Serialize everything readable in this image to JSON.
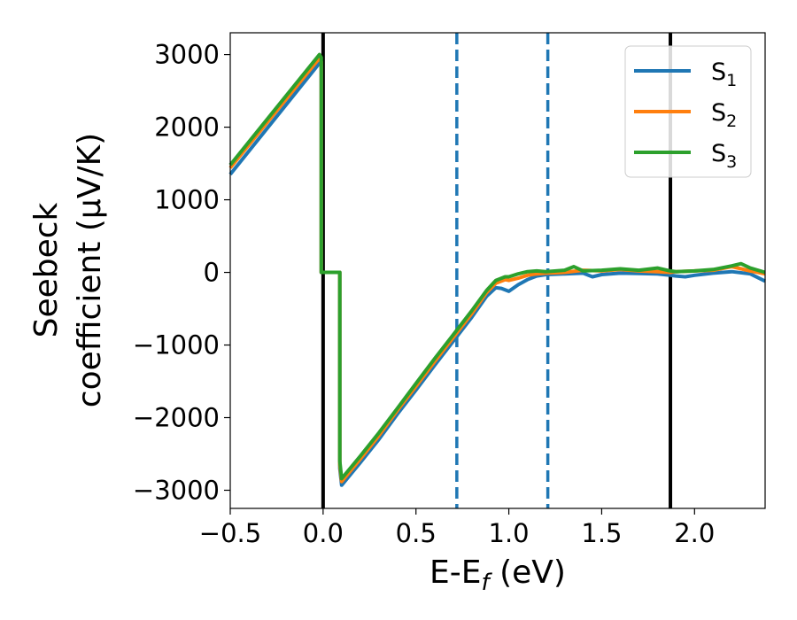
{
  "chart_data": {
    "type": "line",
    "xlabel": "E-E",
    "xlabel_sub": "f",
    "xlabel_unit": " (eV)",
    "ylabel_line1": "Seebeck",
    "ylabel_line2": "coefficient  (μV/K)",
    "xlim": [
      -0.5,
      2.38
    ],
    "ylim": [
      -3250,
      3300
    ],
    "xticks": [
      -0.5,
      0.0,
      0.5,
      1.0,
      1.5,
      2.0
    ],
    "xtick_labels": [
      "−0.5",
      "0.0",
      "0.5",
      "1.0",
      "1.5",
      "2.0"
    ],
    "yticks": [
      -3000,
      -2000,
      -1000,
      0,
      1000,
      2000,
      3000
    ],
    "ytick_labels": [
      "−3000",
      "−2000",
      "−1000",
      "0",
      "1000",
      "2000",
      "3000"
    ],
    "grid": false,
    "legend_position": "top-right",
    "vlines": [
      {
        "x": 0.0,
        "style": "solid",
        "color": "#000000"
      },
      {
        "x": 1.87,
        "style": "solid",
        "color": "#000000"
      },
      {
        "x": 0.72,
        "style": "dashed",
        "color": "#1f77b4"
      },
      {
        "x": 1.21,
        "style": "dashed",
        "color": "#1f77b4"
      }
    ],
    "series": [
      {
        "name": "S",
        "sub": "1",
        "color": "#1f77b4",
        "x": [
          -0.5,
          -0.02,
          -0.01,
          -0.01,
          0.09,
          0.09,
          0.1,
          0.2,
          0.3,
          0.4,
          0.5,
          0.6,
          0.7,
          0.8,
          0.88,
          0.93,
          0.96,
          1.0,
          1.05,
          1.1,
          1.15,
          1.2,
          1.3,
          1.4,
          1.45,
          1.5,
          1.6,
          1.7,
          1.8,
          1.87,
          1.9,
          1.95,
          2.0,
          2.1,
          2.2,
          2.3,
          2.38
        ],
        "y": [
          1350,
          2880,
          2850,
          0,
          0,
          -2700,
          -2930,
          -2620,
          -2300,
          -1950,
          -1620,
          -1280,
          -950,
          -620,
          -330,
          -210,
          -220,
          -260,
          -170,
          -100,
          -50,
          -30,
          -20,
          -10,
          -60,
          -30,
          -10,
          -15,
          -20,
          -40,
          -50,
          -60,
          -40,
          -10,
          10,
          -20,
          -120
        ]
      },
      {
        "name": "S",
        "sub": "2",
        "color": "#ff7f0e",
        "x": [
          -0.5,
          -0.02,
          -0.01,
          -0.01,
          0.09,
          0.09,
          0.1,
          0.2,
          0.3,
          0.4,
          0.5,
          0.6,
          0.7,
          0.8,
          0.88,
          0.93,
          0.98,
          1.0,
          1.05,
          1.1,
          1.15,
          1.2,
          1.3,
          1.4,
          1.5,
          1.6,
          1.7,
          1.8,
          1.87,
          1.9,
          2.0,
          2.1,
          2.2,
          2.3,
          2.38
        ],
        "y": [
          1440,
          2950,
          2900,
          0,
          0,
          -2650,
          -2880,
          -2570,
          -2250,
          -1900,
          -1570,
          -1230,
          -900,
          -570,
          -280,
          -150,
          -100,
          -110,
          -80,
          -40,
          -20,
          -10,
          0,
          30,
          20,
          40,
          20,
          10,
          0,
          10,
          20,
          30,
          80,
          20,
          -20
        ]
      },
      {
        "name": "S",
        "sub": "3",
        "color": "#2ca02c",
        "x": [
          -0.5,
          -0.02,
          -0.01,
          -0.01,
          0.09,
          0.09,
          0.1,
          0.2,
          0.3,
          0.4,
          0.5,
          0.6,
          0.7,
          0.8,
          0.88,
          0.93,
          0.98,
          1.0,
          1.05,
          1.1,
          1.15,
          1.2,
          1.3,
          1.35,
          1.4,
          1.5,
          1.6,
          1.7,
          1.8,
          1.87,
          1.9,
          2.0,
          2.1,
          2.2,
          2.25,
          2.3,
          2.38
        ],
        "y": [
          1480,
          3000,
          2960,
          0,
          0,
          -2600,
          -2840,
          -2530,
          -2210,
          -1870,
          -1530,
          -1190,
          -860,
          -530,
          -250,
          -110,
          -60,
          -60,
          -20,
          10,
          20,
          10,
          30,
          80,
          20,
          30,
          50,
          30,
          60,
          20,
          10,
          20,
          40,
          90,
          120,
          60,
          0
        ]
      }
    ]
  }
}
